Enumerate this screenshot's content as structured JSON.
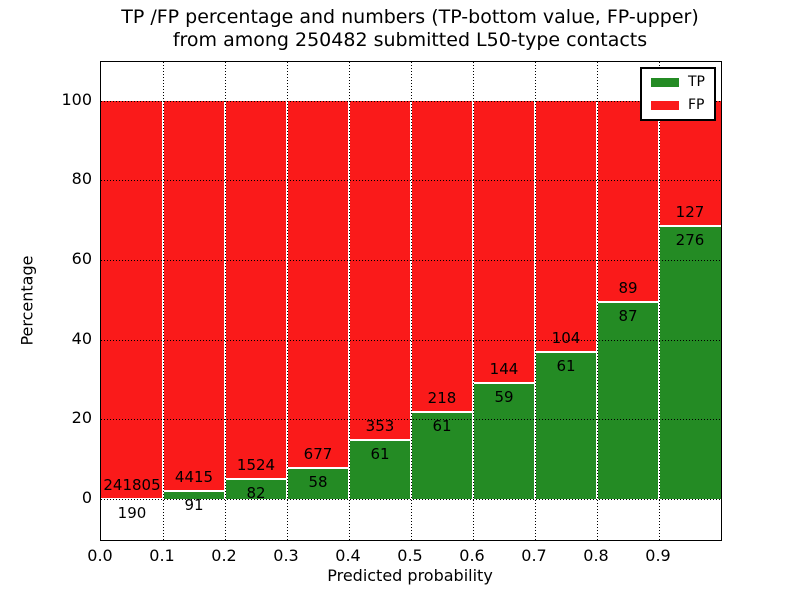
{
  "figure": {
    "title_line1": "TP /FP percentage and numbers (TP-bottom value, FP-upper)",
    "title_line2": "from among 250482 submitted L50-type contacts"
  },
  "chart_data": {
    "type": "bar",
    "stacked": true,
    "normalized_to_percent": true,
    "title": "TP /FP percentage and numbers (TP-bottom value, FP-upper) from among 250482 submitted L50-type contacts",
    "xlabel": "Predicted probability",
    "ylabel": "Percentage",
    "total_contacts": 250482,
    "bin_edges": [
      0.0,
      0.1,
      0.2,
      0.3,
      0.4,
      0.5,
      0.6,
      0.7,
      0.8,
      0.9,
      1.0
    ],
    "x_tick_labels": [
      "0.0",
      "0.1",
      "0.2",
      "0.3",
      "0.4",
      "0.5",
      "0.6",
      "0.7",
      "0.8",
      "0.9"
    ],
    "y_ticks": [
      0,
      20,
      40,
      60,
      80,
      100
    ],
    "xlim": [
      0,
      1
    ],
    "ylim": [
      -10.3,
      109.7
    ],
    "grid": true,
    "grid_style": "dotted",
    "legend_position": "upper right",
    "series": [
      {
        "name": "TP",
        "color": "#248b24",
        "counts": [
          190,
          91,
          82,
          58,
          61,
          61,
          59,
          61,
          87,
          276
        ]
      },
      {
        "name": "FP",
        "color": "#fa1a1a",
        "counts": [
          241805,
          4415,
          1524,
          677,
          353,
          218,
          144,
          104,
          89,
          127
        ]
      }
    ],
    "tp_percent_of_bin": [
      0.08,
      2.02,
      5.11,
      7.89,
      14.73,
      21.86,
      29.06,
      36.97,
      49.43,
      68.49
    ]
  }
}
